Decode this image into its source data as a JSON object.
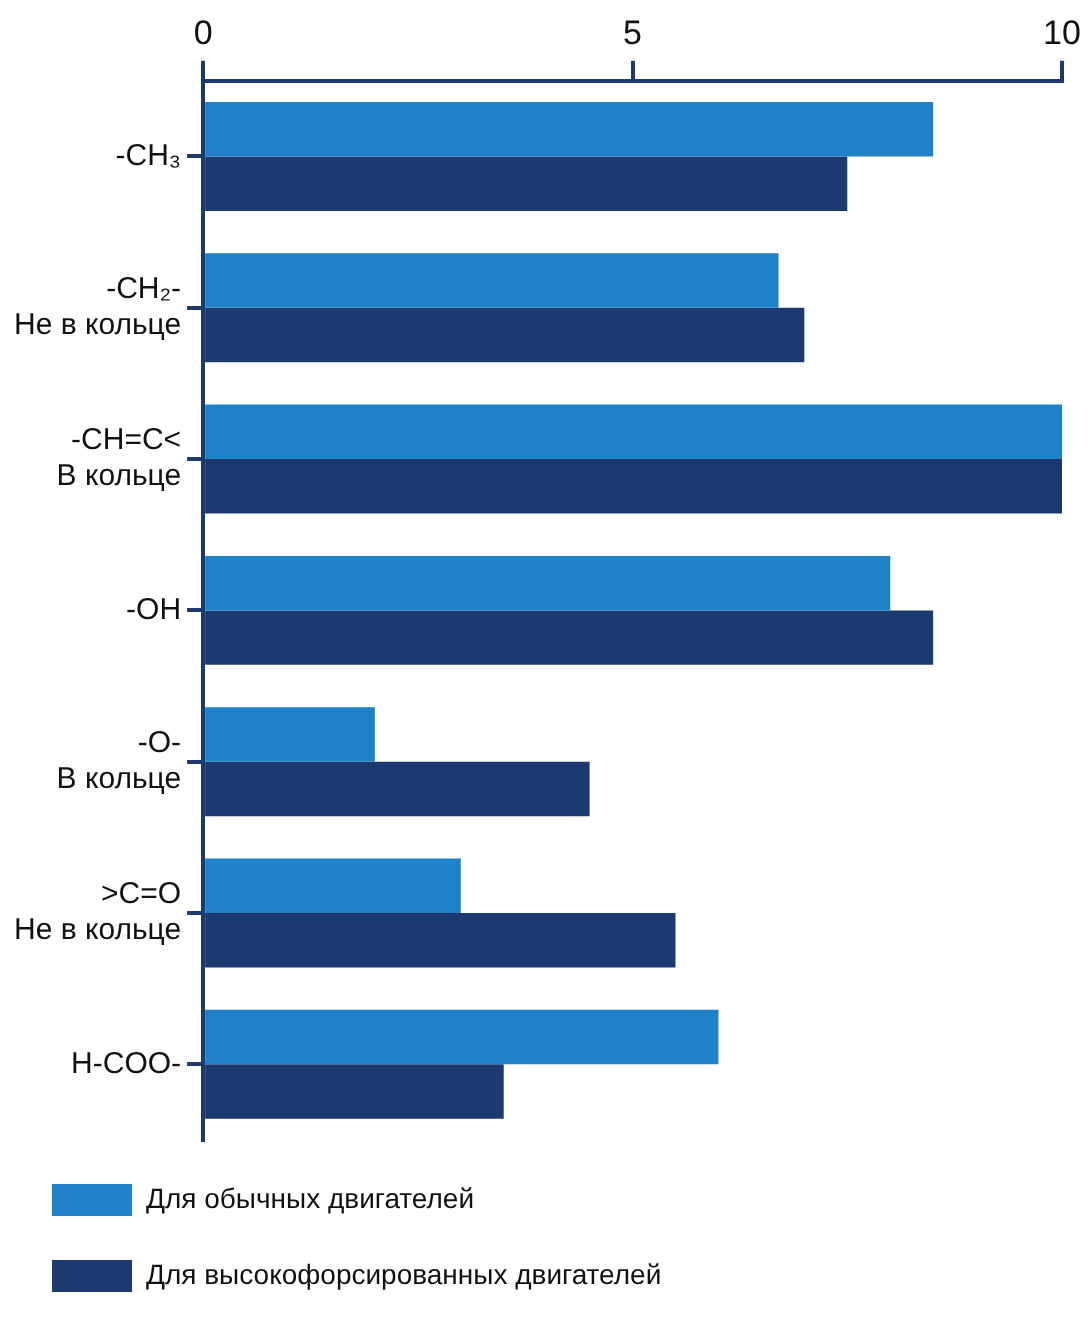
{
  "chart_data": {
    "type": "bar",
    "orientation": "horizontal",
    "categories": [
      "-CH₃",
      "-CH₂-\nНе в кольце",
      "-CH=C<\nВ кольце",
      "-OH",
      "-O-\nВ кольце",
      ">C=O\nНе в кольце",
      "H-COO-"
    ],
    "series": [
      {
        "name": "Для обычных двигателей",
        "color": "#1f82c8",
        "values": [
          8.5,
          6.7,
          10,
          8,
          2,
          3,
          6
        ]
      },
      {
        "name": "Для высокофорсированных двигателей",
        "color": "#1c3a70",
        "values": [
          7.5,
          7,
          10,
          8.5,
          4.5,
          5.5,
          3.5
        ]
      }
    ],
    "xlim": [
      0,
      10
    ],
    "xticks": [
      0,
      5,
      10
    ],
    "grid": false,
    "legend": "bottom"
  }
}
